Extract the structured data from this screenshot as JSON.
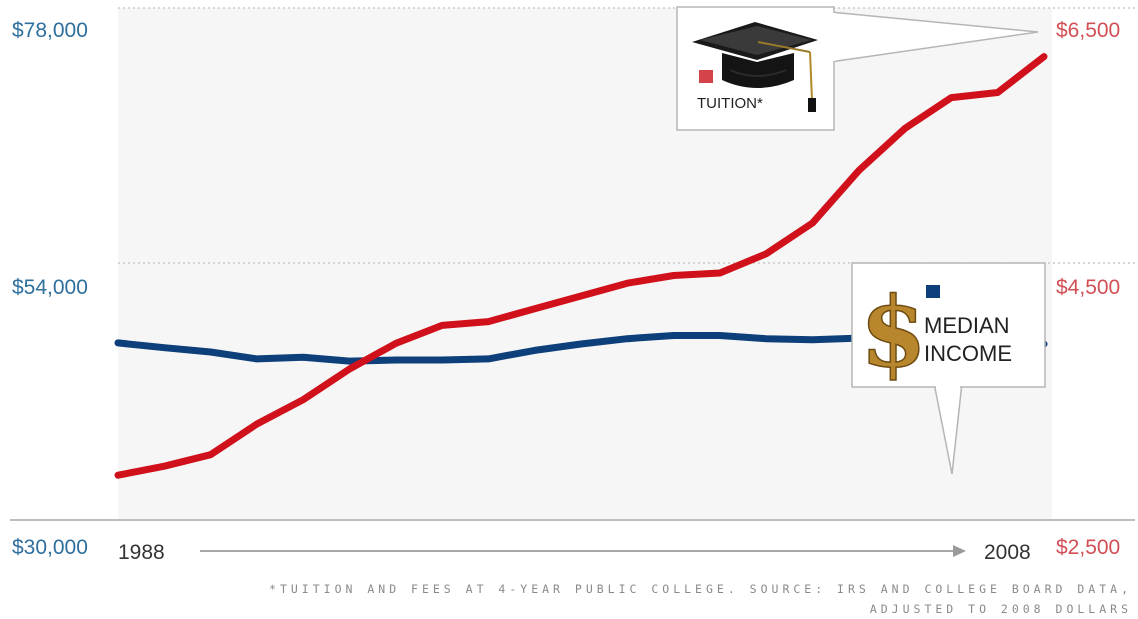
{
  "chart_data": {
    "type": "line",
    "x": [
      1988,
      1989,
      1990,
      1991,
      1992,
      1993,
      1994,
      1995,
      1996,
      1997,
      1998,
      1999,
      2000,
      2001,
      2002,
      2003,
      2004,
      2005,
      2006,
      2007,
      2008
    ],
    "x_start_label": "1988",
    "x_end_label": "2008",
    "y_left": {
      "ticks": [
        "$78,000",
        "$54,000",
        "$30,000"
      ],
      "range": [
        30000,
        78000
      ]
    },
    "y_right": {
      "ticks": [
        "$6,500",
        "$4,500",
        "$2,500"
      ],
      "range": [
        2500,
        6500
      ]
    },
    "series": [
      {
        "name": "TUITION*",
        "axis": "right",
        "color": "#d0111b",
        "values": [
          2850,
          2920,
          3010,
          3250,
          3440,
          3680,
          3880,
          4020,
          4050,
          4150,
          4250,
          4350,
          4410,
          4430,
          4580,
          4820,
          5230,
          5560,
          5800,
          5840,
          6120
        ]
      },
      {
        "name": "MEDIAN INCOME",
        "axis": "left",
        "color": "#0d3f7b",
        "values": [
          46600,
          46150,
          45750,
          45100,
          45250,
          44900,
          45000,
          45000,
          45100,
          45900,
          46500,
          47000,
          47300,
          47300,
          47000,
          46900,
          47050,
          46950,
          47000,
          47000,
          46500
        ]
      }
    ],
    "callouts": {
      "tuition_label": "TUITION*",
      "income_label_line1": "MEDIAN",
      "income_label_line2": "INCOME"
    },
    "footnote_line1": "*TUITION AND FEES AT 4-YEAR PUBLIC COLLEGE. SOURCE: IRS AND COLLEGE BOARD DATA,",
    "footnote_line2": "ADJUSTED TO 2008 DOLLARS"
  }
}
